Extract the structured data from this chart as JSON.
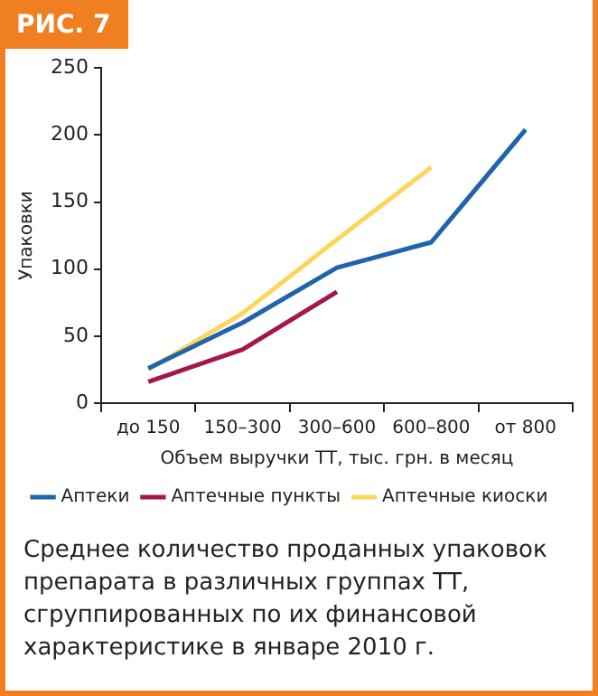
{
  "chart_data": {
    "type": "line",
    "title": "РИС. 7",
    "xlabel": "Объем выручки ТТ, тыс. грн. в месяц",
    "ylabel": "Упаковки",
    "categories": [
      "до 150",
      "150–300",
      "300–600",
      "600–800",
      "от 800"
    ],
    "series": [
      {
        "name": "Аптеки",
        "color": "#1f64ad",
        "values": [
          26,
          60,
          101,
          120,
          204
        ]
      },
      {
        "name": "Аптечные пункты",
        "color": "#a3174a",
        "values": [
          16,
          40,
          83,
          null,
          null
        ]
      },
      {
        "name": "Аптечные киоски",
        "color": "#fdd55a",
        "values": [
          25,
          67,
          122,
          176,
          null
        ]
      }
    ],
    "ylim": [
      0,
      250
    ],
    "yticks": [
      0,
      50,
      100,
      150,
      200,
      250
    ],
    "legend": "bottom",
    "annotations": [
      "Среднее количество проданных упаковок препарата в различных группах ТТ, сгруппированных по их финансовой характеристике в январе 2010 г."
    ]
  }
}
